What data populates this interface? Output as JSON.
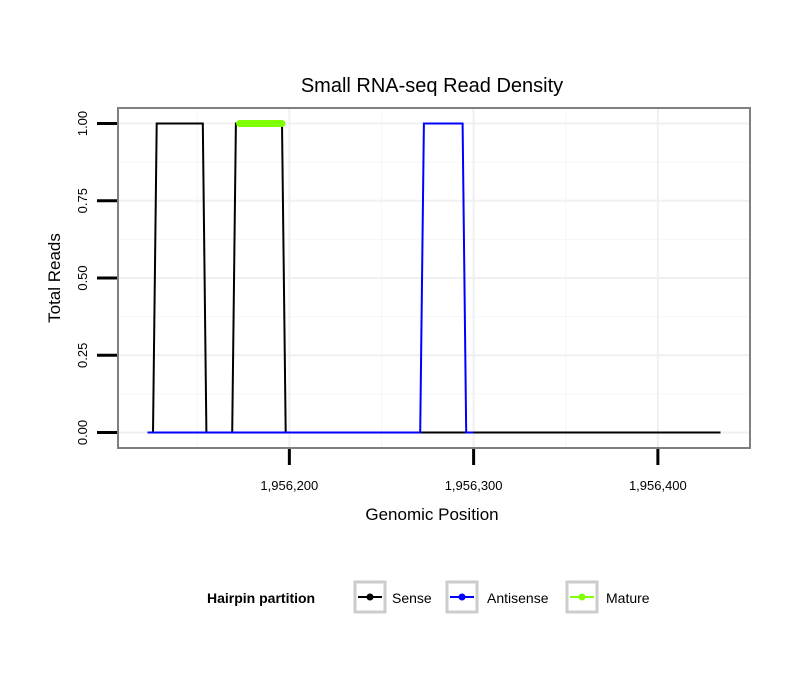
{
  "chart_data": {
    "type": "line",
    "title": "Small RNA-seq Read Density",
    "xlabel": "Genomic Position",
    "ylabel": "Total Reads",
    "xlim": [
      1956107,
      1956450
    ],
    "ylim": [
      -0.05,
      1.05
    ],
    "x_ticks": [
      {
        "value": 1956200,
        "label": "1,956,200"
      },
      {
        "value": 1956300,
        "label": "1,956,300"
      },
      {
        "value": 1956400,
        "label": "1,956,400"
      }
    ],
    "y_ticks": [
      {
        "value": 0.0,
        "label": "0.00"
      },
      {
        "value": 0.25,
        "label": "0.25"
      },
      {
        "value": 0.5,
        "label": "0.50"
      },
      {
        "value": 0.75,
        "label": "0.75"
      },
      {
        "value": 1.0,
        "label": "1.00"
      }
    ],
    "grid": true,
    "legend": {
      "title": "Hairpin partition",
      "position": "bottom",
      "entries": [
        "Sense",
        "Antisense",
        "Mature"
      ]
    },
    "series": [
      {
        "name": "Sense",
        "color": "#000000",
        "points": [
          [
            1956123,
            0
          ],
          [
            1956126,
            0
          ],
          [
            1956128,
            1
          ],
          [
            1956153,
            1
          ],
          [
            1956155,
            0
          ],
          [
            1956169,
            0
          ],
          [
            1956171,
            1
          ],
          [
            1956196,
            1
          ],
          [
            1956198,
            0
          ],
          [
            1956434,
            0
          ]
        ]
      },
      {
        "name": "Antisense",
        "color": "#0000ff",
        "points": [
          [
            1956123,
            0
          ],
          [
            1956271,
            0
          ],
          [
            1956273,
            1
          ],
          [
            1956294,
            1
          ],
          [
            1956296,
            0
          ],
          [
            1956300,
            0
          ]
        ]
      },
      {
        "name": "Mature",
        "color": "#7fff00",
        "points": [
          [
            1956173,
            1
          ],
          [
            1956196,
            1
          ]
        ]
      }
    ]
  }
}
